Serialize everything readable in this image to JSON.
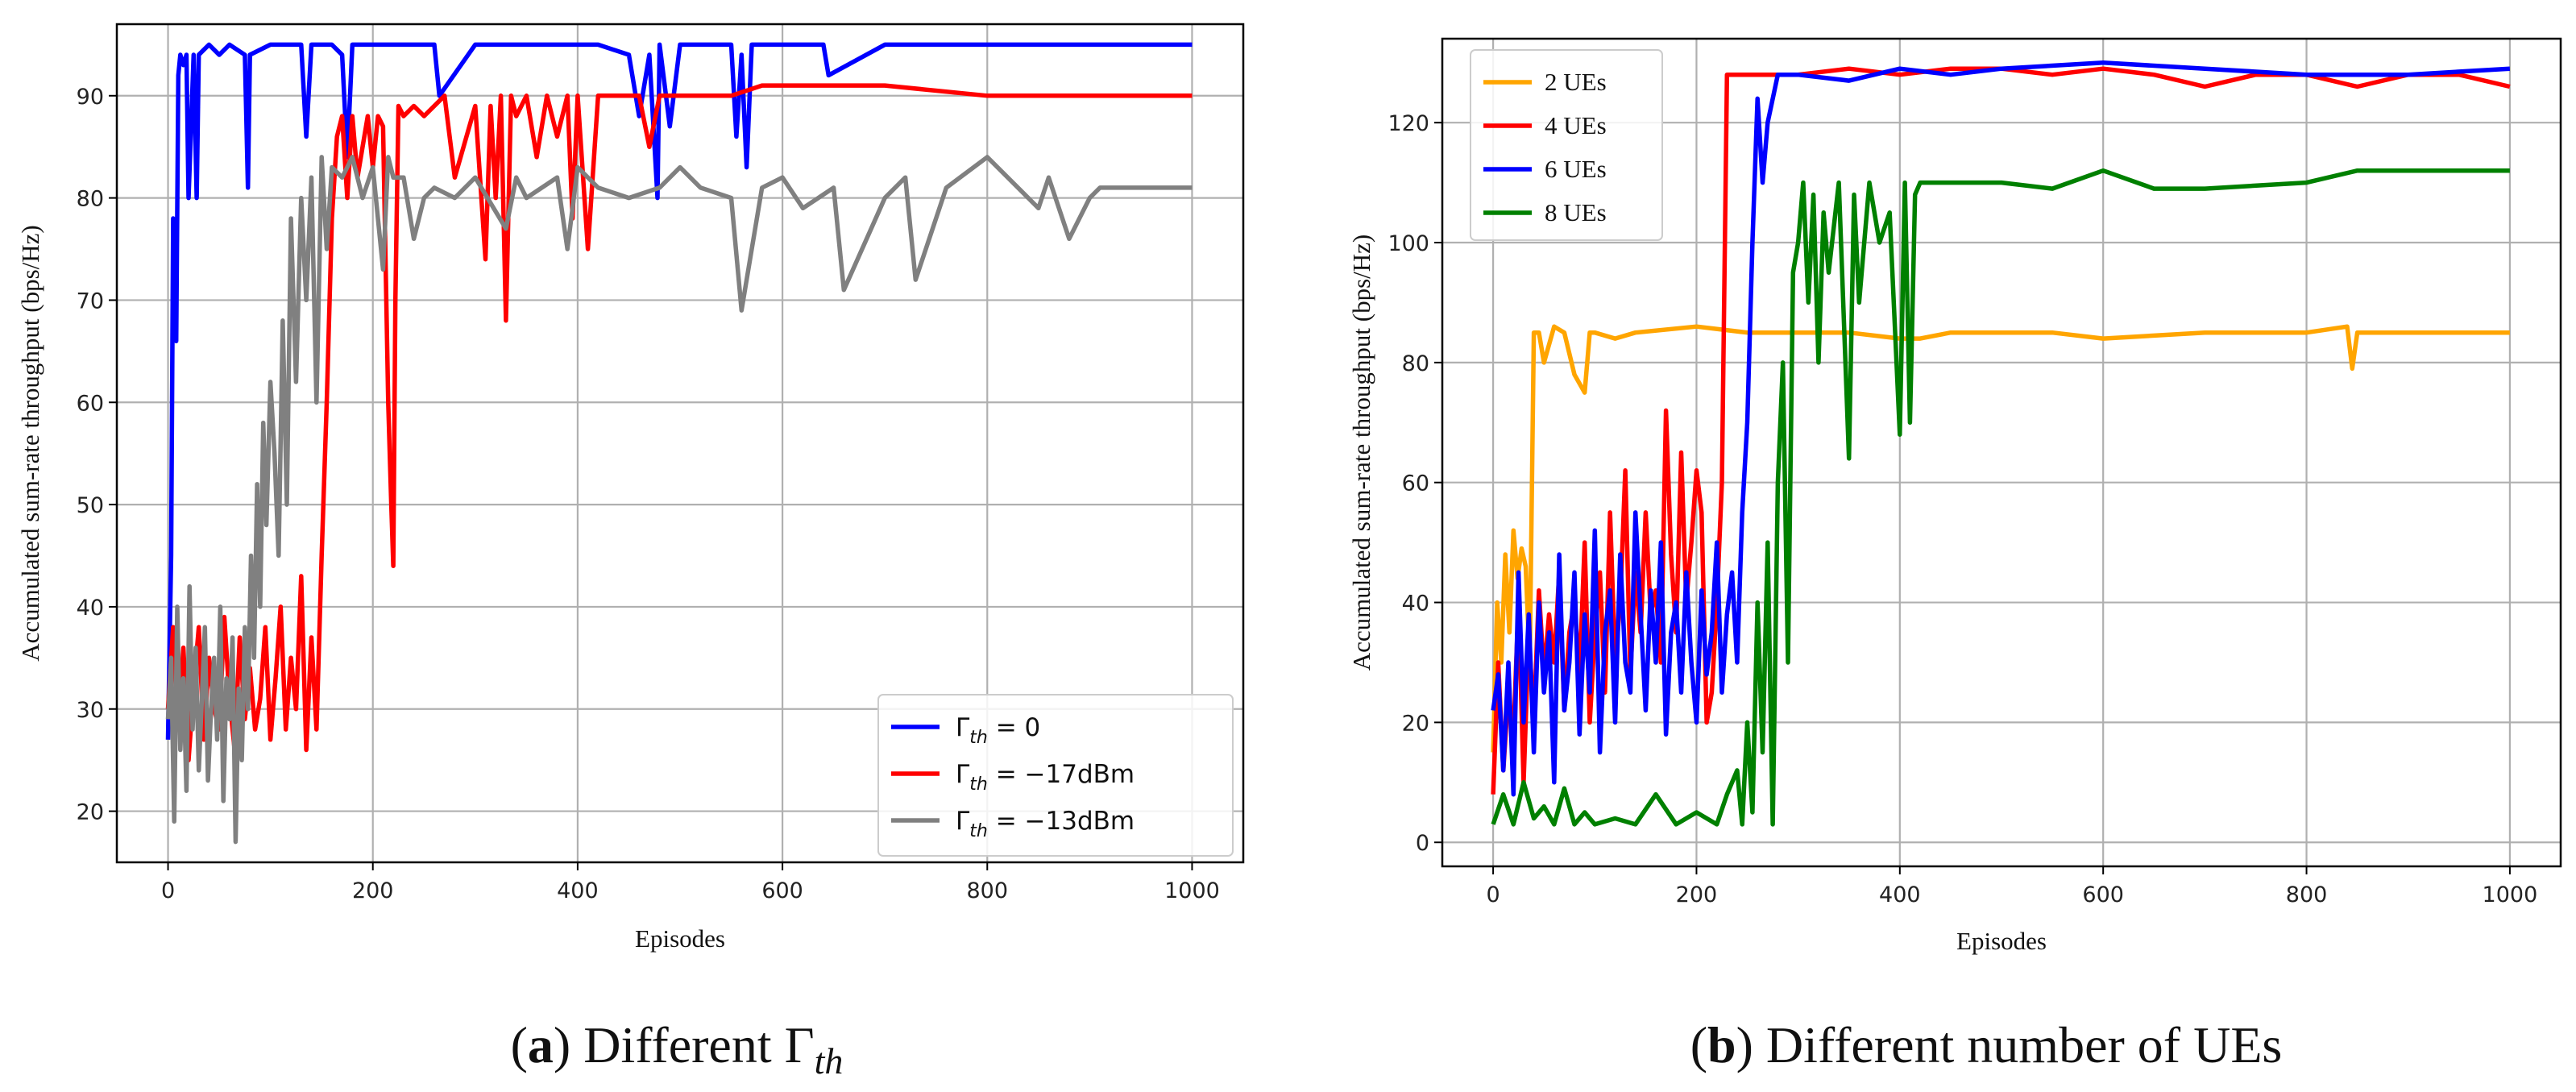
{
  "chart_data": [
    {
      "type": "line",
      "caption": {
        "open": "(",
        "letter": "a",
        "close": ")",
        "text": "Different",
        "symbol": "Γ",
        "subscript": "th"
      },
      "xlabel": "Episodes",
      "ylabel": "Accumulated sum-rate throughput (bps/Hz)",
      "xlim": [
        -50,
        1050
      ],
      "ylim": [
        15,
        97
      ],
      "xticks": [
        0,
        200,
        400,
        600,
        800,
        1000
      ],
      "yticks": [
        20,
        30,
        40,
        50,
        60,
        70,
        80,
        90
      ],
      "grid": true,
      "legend_position": "lower-right",
      "series": [
        {
          "name": "Γth = 0",
          "legend_symbol": "Γ",
          "legend_subscript": "th",
          "legend_rest": " = 0",
          "color": "#0000ff",
          "x": [
            0,
            3,
            5,
            8,
            10,
            12,
            15,
            18,
            20,
            25,
            28,
            30,
            40,
            50,
            60,
            75,
            78,
            80,
            100,
            130,
            135,
            140,
            160,
            170,
            175,
            180,
            200,
            260,
            265,
            300,
            350,
            400,
            420,
            450,
            460,
            470,
            478,
            480,
            490,
            500,
            520,
            550,
            555,
            560,
            565,
            570,
            600,
            640,
            645,
            700,
            800,
            850,
            900,
            950,
            1000
          ],
          "y": [
            27,
            45,
            78,
            66,
            92,
            94,
            93,
            94,
            80,
            94,
            80,
            94,
            95,
            94,
            95,
            94,
            81,
            94,
            95,
            95,
            86,
            95,
            95,
            94,
            84,
            95,
            95,
            95,
            90,
            95,
            95,
            95,
            95,
            94,
            88,
            94,
            80,
            95,
            87,
            95,
            95,
            95,
            86,
            94,
            83,
            95,
            95,
            95,
            92,
            95,
            95,
            95,
            95,
            95,
            95
          ]
        },
        {
          "name": "Γth = −17dBm",
          "legend_symbol": "Γ",
          "legend_subscript": "th",
          "legend_rest": " = −17dBm",
          "color": "#ff0000",
          "x": [
            0,
            5,
            10,
            15,
            20,
            25,
            30,
            35,
            40,
            45,
            50,
            55,
            60,
            65,
            70,
            75,
            80,
            85,
            90,
            95,
            100,
            105,
            110,
            115,
            120,
            125,
            130,
            135,
            140,
            145,
            150,
            155,
            160,
            165,
            170,
            175,
            180,
            185,
            190,
            195,
            200,
            205,
            210,
            215,
            218,
            220,
            222,
            225,
            230,
            240,
            250,
            270,
            280,
            300,
            310,
            315,
            320,
            325,
            330,
            335,
            340,
            350,
            360,
            370,
            380,
            390,
            395,
            400,
            410,
            420,
            440,
            460,
            470,
            480,
            500,
            550,
            580,
            600,
            650,
            700,
            800,
            900,
            1000
          ],
          "y": [
            30,
            38,
            28,
            36,
            25,
            32,
            38,
            27,
            35,
            30,
            28,
            39,
            31,
            26,
            37,
            29,
            34,
            28,
            31,
            38,
            27,
            33,
            40,
            28,
            35,
            30,
            43,
            26,
            37,
            28,
            45,
            60,
            78,
            86,
            88,
            80,
            88,
            82,
            85,
            88,
            83,
            88,
            87,
            60,
            50,
            44,
            70,
            89,
            88,
            89,
            88,
            90,
            82,
            89,
            74,
            89,
            80,
            90,
            68,
            90,
            88,
            90,
            84,
            90,
            86,
            90,
            78,
            90,
            75,
            90,
            90,
            90,
            85,
            90,
            90,
            90,
            91,
            91,
            91,
            91,
            90,
            90,
            90
          ]
        },
        {
          "name": "Γth = −13dBm",
          "legend_symbol": "Γ",
          "legend_subscript": "th",
          "legend_rest": " = −13dBm",
          "color": "#808080",
          "x": [
            0,
            3,
            6,
            9,
            12,
            15,
            18,
            21,
            24,
            27,
            30,
            33,
            36,
            39,
            42,
            45,
            48,
            51,
            54,
            57,
            60,
            63,
            66,
            69,
            72,
            75,
            78,
            81,
            84,
            87,
            90,
            93,
            96,
            100,
            104,
            108,
            112,
            116,
            120,
            125,
            130,
            135,
            140,
            145,
            150,
            155,
            160,
            170,
            180,
            190,
            200,
            210,
            215,
            220,
            230,
            240,
            250,
            260,
            280,
            300,
            330,
            340,
            350,
            380,
            390,
            400,
            420,
            450,
            480,
            500,
            520,
            550,
            560,
            580,
            600,
            620,
            650,
            660,
            700,
            720,
            730,
            760,
            800,
            850,
            860,
            880,
            900,
            910,
            950,
            1000
          ],
          "y": [
            29,
            35,
            19,
            40,
            26,
            33,
            22,
            42,
            28,
            36,
            24,
            31,
            38,
            23,
            30,
            35,
            27,
            40,
            21,
            33,
            29,
            37,
            17,
            32,
            25,
            38,
            30,
            45,
            35,
            52,
            40,
            58,
            48,
            62,
            55,
            45,
            68,
            50,
            78,
            62,
            80,
            70,
            82,
            60,
            84,
            75,
            83,
            82,
            84,
            80,
            83,
            73,
            84,
            82,
            82,
            76,
            80,
            81,
            80,
            82,
            77,
            82,
            80,
            82,
            75,
            83,
            81,
            80,
            81,
            83,
            81,
            80,
            69,
            81,
            82,
            79,
            81,
            71,
            80,
            82,
            72,
            81,
            84,
            79,
            82,
            76,
            80,
            81,
            81,
            81
          ]
        }
      ]
    },
    {
      "type": "line",
      "caption": {
        "open": "(",
        "letter": "b",
        "close": ")",
        "text": "Different number of UEs"
      },
      "xlabel": "Episodes",
      "ylabel": "Accumulated sum-rate throughput (bps/Hz)",
      "xlim": [
        -50,
        1050
      ],
      "ylim": [
        -4,
        134
      ],
      "xticks": [
        0,
        200,
        400,
        600,
        800,
        1000
      ],
      "yticks": [
        0,
        20,
        40,
        60,
        80,
        100,
        120
      ],
      "grid": true,
      "legend_position": "upper-left",
      "series": [
        {
          "name": "2 UEs",
          "color": "#ffa500",
          "x": [
            0,
            4,
            8,
            12,
            16,
            20,
            24,
            28,
            32,
            36,
            40,
            45,
            50,
            60,
            70,
            80,
            90,
            95,
            100,
            120,
            140,
            200,
            250,
            300,
            350,
            400,
            420,
            450,
            500,
            550,
            600,
            700,
            800,
            840,
            845,
            850,
            900,
            950,
            1000
          ],
          "y": [
            15,
            40,
            30,
            48,
            35,
            52,
            44,
            49,
            46,
            30,
            85,
            85,
            80,
            86,
            85,
            78,
            75,
            85,
            85,
            84,
            85,
            86,
            85,
            85,
            85,
            84,
            84,
            85,
            85,
            85,
            84,
            85,
            85,
            86,
            79,
            85,
            85,
            85,
            85
          ]
        },
        {
          "name": "4 UEs",
          "color": "#ff0000",
          "x": [
            0,
            5,
            10,
            15,
            20,
            25,
            30,
            35,
            40,
            45,
            50,
            55,
            60,
            65,
            70,
            75,
            80,
            85,
            90,
            95,
            100,
            105,
            110,
            115,
            120,
            125,
            130,
            135,
            140,
            145,
            150,
            155,
            160,
            165,
            170,
            175,
            180,
            185,
            190,
            195,
            200,
            205,
            210,
            215,
            220,
            225,
            230,
            250,
            300,
            350,
            400,
            450,
            500,
            550,
            600,
            650,
            700,
            750,
            800,
            850,
            900,
            950,
            1000
          ],
          "y": [
            8,
            30,
            12,
            25,
            18,
            40,
            10,
            35,
            20,
            42,
            28,
            38,
            30,
            45,
            22,
            35,
            40,
            28,
            50,
            20,
            35,
            45,
            25,
            55,
            30,
            40,
            62,
            28,
            45,
            35,
            55,
            38,
            42,
            30,
            72,
            48,
            35,
            65,
            40,
            50,
            62,
            55,
            20,
            25,
            40,
            60,
            128,
            128,
            128,
            129,
            128,
            129,
            129,
            128,
            129,
            128,
            126,
            128,
            128,
            126,
            128,
            128,
            126
          ]
        },
        {
          "name": "6 UEs",
          "color": "#0000ff",
          "x": [
            0,
            5,
            10,
            15,
            20,
            25,
            30,
            35,
            40,
            45,
            50,
            55,
            60,
            65,
            70,
            75,
            80,
            85,
            90,
            95,
            100,
            105,
            110,
            115,
            120,
            125,
            130,
            135,
            140,
            145,
            150,
            155,
            160,
            165,
            170,
            175,
            180,
            185,
            190,
            195,
            200,
            205,
            210,
            215,
            220,
            225,
            230,
            235,
            240,
            245,
            250,
            255,
            260,
            265,
            270,
            280,
            300,
            350,
            400,
            450,
            500,
            600,
            700,
            800,
            900,
            1000
          ],
          "y": [
            22,
            28,
            12,
            30,
            8,
            45,
            20,
            38,
            15,
            40,
            25,
            35,
            10,
            48,
            22,
            30,
            45,
            18,
            38,
            25,
            52,
            15,
            35,
            42,
            20,
            48,
            30,
            25,
            55,
            38,
            22,
            42,
            30,
            50,
            18,
            35,
            40,
            25,
            45,
            30,
            20,
            42,
            28,
            35,
            50,
            25,
            38,
            45,
            30,
            55,
            70,
            100,
            124,
            110,
            120,
            128,
            128,
            127,
            129,
            128,
            129,
            130,
            129,
            128,
            128,
            129
          ]
        },
        {
          "name": "8 UEs",
          "color": "#008000",
          "x": [
            0,
            10,
            20,
            30,
            40,
            50,
            60,
            70,
            80,
            90,
            100,
            120,
            140,
            160,
            180,
            200,
            220,
            230,
            240,
            245,
            250,
            255,
            260,
            265,
            270,
            275,
            280,
            285,
            290,
            295,
            300,
            305,
            310,
            315,
            320,
            325,
            330,
            340,
            350,
            355,
            360,
            370,
            380,
            390,
            400,
            405,
            410,
            415,
            420,
            425,
            430,
            450,
            500,
            550,
            600,
            650,
            700,
            800,
            850,
            900,
            950,
            1000
          ],
          "y": [
            3,
            8,
            3,
            10,
            4,
            6,
            3,
            9,
            3,
            5,
            3,
            4,
            3,
            8,
            3,
            5,
            3,
            8,
            12,
            3,
            20,
            5,
            40,
            15,
            50,
            3,
            60,
            80,
            30,
            95,
            100,
            110,
            90,
            108,
            80,
            105,
            95,
            110,
            64,
            108,
            90,
            110,
            100,
            105,
            68,
            110,
            70,
            108,
            110,
            110,
            110,
            110,
            110,
            109,
            112,
            109,
            109,
            110,
            112,
            112,
            112,
            112
          ]
        }
      ]
    }
  ]
}
